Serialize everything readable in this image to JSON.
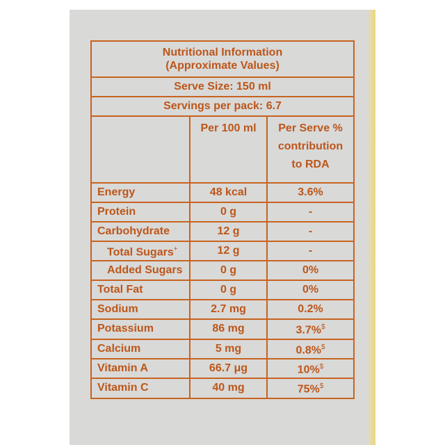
{
  "label": {
    "title_lines": [
      "Nutritional Information",
      "(Approximate Values)"
    ],
    "serve_size": "Serve Size: 150 ml",
    "servings": "Servings per pack: 6.7",
    "columns": [
      "Per 100 ml",
      "Per Serve % contribution to RDA"
    ],
    "rows": [
      {
        "nutrient": "Energy",
        "per_100ml": "48 kcal",
        "rda": "3.6%"
      },
      {
        "nutrient": "Protein",
        "per_100ml": "0 g",
        "rda": "-"
      },
      {
        "nutrient": "Carbohydrate",
        "per_100ml": "12 g",
        "rda": "-",
        "sub_rows": [
          {
            "nutrient": "Total Sugars",
            "nutrient_mark": "+",
            "per_100ml": "12 g",
            "rda": "-"
          },
          {
            "nutrient": "Added Sugars",
            "per_100ml": "0 g",
            "rda": "0%"
          }
        ]
      },
      {
        "nutrient": "Total Fat",
        "per_100ml": "0 g",
        "rda": "0%"
      },
      {
        "nutrient": "Sodium",
        "per_100ml": "2.7 mg",
        "rda": "0.2%"
      },
      {
        "nutrient": "Potassium",
        "per_100ml": "86 mg",
        "rda": "3.7%",
        "rda_mark": "$"
      },
      {
        "nutrient": "Calcium",
        "per_100ml": "5 mg",
        "rda": "0.8%",
        "rda_mark": "$"
      },
      {
        "nutrient": "Vitamin A",
        "per_100ml": "66.7 μg",
        "rda": "10%",
        "rda_mark": "$"
      },
      {
        "nutrient": "Vitamin C",
        "per_100ml": "40 mg",
        "rda": "75%",
        "rda_mark": "$"
      }
    ]
  }
}
